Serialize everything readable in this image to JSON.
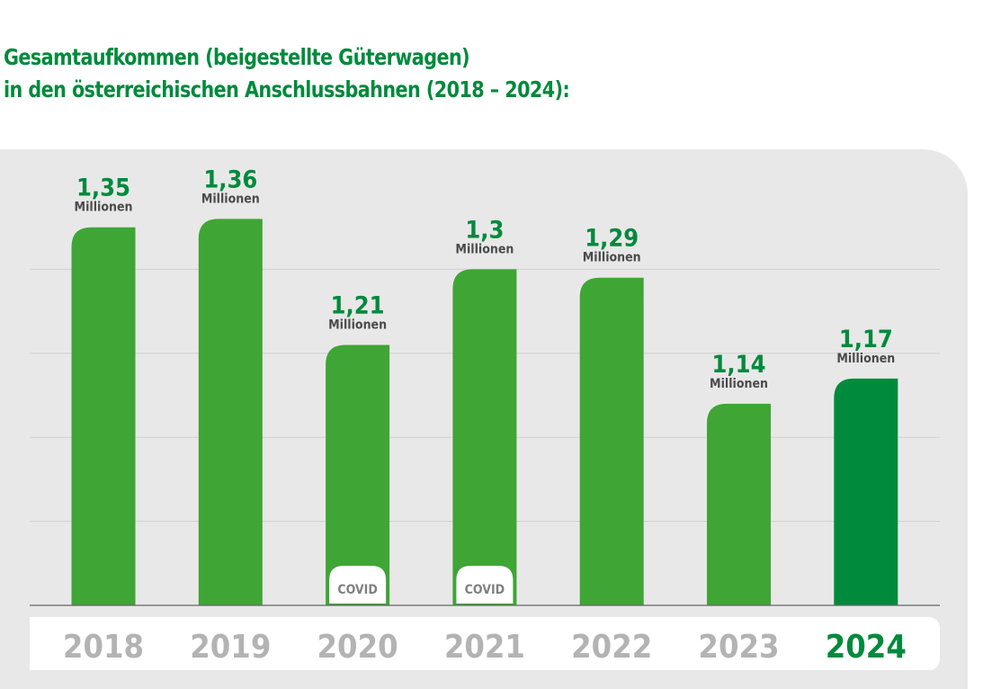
{
  "title_lines": [
    "Gesamtaufkommen (beigestellte Güterwagen)",
    "in den österreichischen Anschlussbahnen (2018 – 2024):"
  ],
  "chart_data": {
    "type": "bar",
    "title": "Gesamtaufkommen (beigestellte Güterwagen) in den österreichischen Anschlussbahnen (2018 – 2024):",
    "categories": [
      "2018",
      "2019",
      "2020",
      "2021",
      "2022",
      "2023",
      "2024"
    ],
    "values": [
      1.35,
      1.36,
      1.21,
      1.3,
      1.29,
      1.14,
      1.17
    ],
    "value_labels": [
      "1,35",
      "1,36",
      "1,21",
      "1,3",
      "1,29",
      "1,14",
      "1,17"
    ],
    "unit_label": "Millionen",
    "badges": {
      "2020": "COVID",
      "2021": "COVID"
    },
    "highlight": "2024",
    "ylim": [
      0.9,
      1.4
    ],
    "grid_values": [
      1.0,
      1.1,
      1.2,
      1.3
    ],
    "grid": true,
    "colors": {
      "bar": "#3fa535",
      "highlight_bar": "#008a3c",
      "value": "#008a3c",
      "unit": "#4a4a4a",
      "year": "#b3b3b3",
      "badge_text": "#808080",
      "panel": "#e8e8e8"
    }
  }
}
